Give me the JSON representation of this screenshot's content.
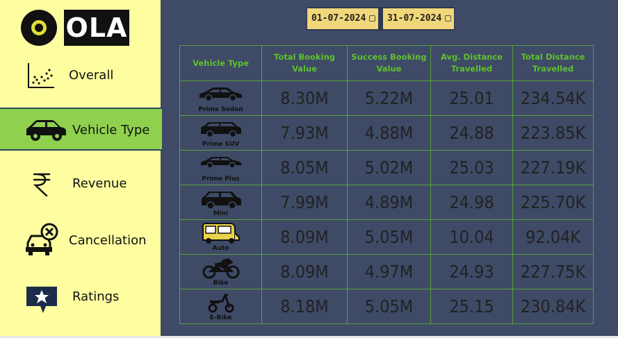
{
  "brand": {
    "logo_text": "OLA"
  },
  "sidebar": {
    "items": [
      {
        "label": "Overall",
        "icon": "scatter-chart-icon",
        "active": false
      },
      {
        "label": "Vehicle Type",
        "icon": "car-icon",
        "active": true
      },
      {
        "label": "Revenue",
        "icon": "rupee-icon",
        "active": false
      },
      {
        "label": "Cancellation",
        "icon": "car-cancel-icon",
        "active": false
      },
      {
        "label": "Ratings",
        "icon": "star-speech-icon",
        "active": false
      }
    ]
  },
  "date_range": {
    "start": "01-07-2024",
    "end": "31-07-2024"
  },
  "table": {
    "headers": [
      "Vehicle Type",
      "Total Booking Value",
      "Success Booking Value",
      "Avg. Distance Travelled",
      "Total Distance Travelled"
    ],
    "rows": [
      {
        "vehicle": "Prime Sedan",
        "icon": "sedan-icon",
        "total_booking": "8.30M",
        "success_booking": "5.22M",
        "avg_distance": "25.01",
        "total_distance": "234.54K"
      },
      {
        "vehicle": "Prime SUV",
        "icon": "suv-icon",
        "total_booking": "7.93M",
        "success_booking": "4.88M",
        "avg_distance": "24.88",
        "total_distance": "223.85K"
      },
      {
        "vehicle": "Prime Plus",
        "icon": "sedan-plus-icon",
        "total_booking": "8.05M",
        "success_booking": "5.02M",
        "avg_distance": "25.03",
        "total_distance": "227.19K"
      },
      {
        "vehicle": "Mini",
        "icon": "hatchback-icon",
        "total_booking": "7.99M",
        "success_booking": "4.89M",
        "avg_distance": "24.98",
        "total_distance": "225.70K"
      },
      {
        "vehicle": "Auto",
        "icon": "auto-rickshaw-icon",
        "total_booking": "8.09M",
        "success_booking": "5.05M",
        "avg_distance": "10.04",
        "total_distance": "92.04K"
      },
      {
        "vehicle": "Bike",
        "icon": "motorbike-icon",
        "total_booking": "8.09M",
        "success_booking": "4.97M",
        "avg_distance": "24.93",
        "total_distance": "227.75K"
      },
      {
        "vehicle": "E-Bike",
        "icon": "scooter-icon",
        "total_booking": "8.18M",
        "success_booking": "5.05M",
        "avg_distance": "25.15",
        "total_distance": "230.84K"
      }
    ]
  },
  "colors": {
    "sidebar_bg": "#fefea0",
    "active_bg": "#8fd14f",
    "main_bg": "#3e4a66",
    "header_text": "#5fc02e",
    "grid_line": "#58a13c",
    "date_bg": "#f0d77a"
  }
}
